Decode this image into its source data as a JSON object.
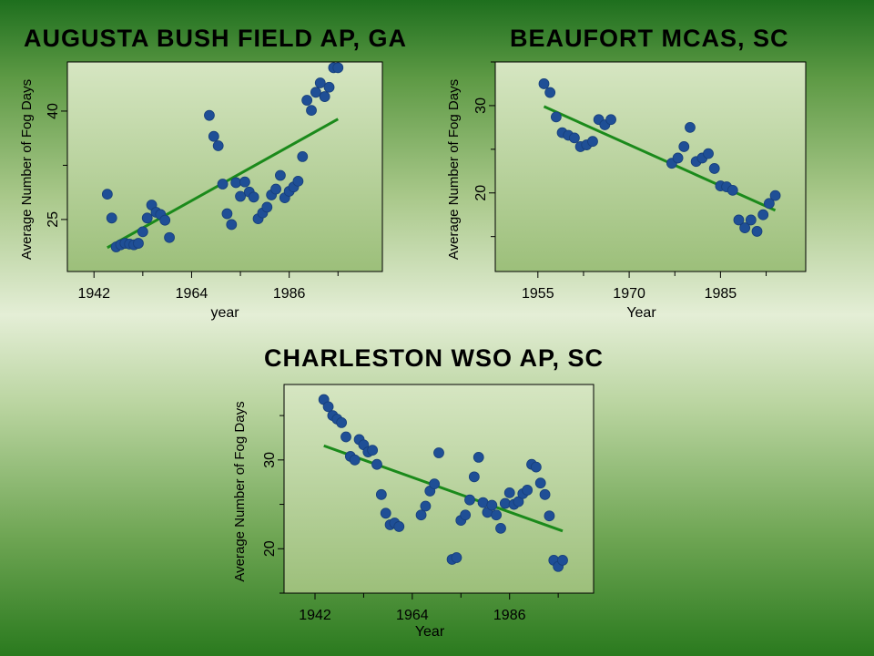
{
  "chart_data": [
    {
      "type": "scatter",
      "title": "AUGUSTA BUSH FIELD AP, GA",
      "xlabel": "year",
      "ylabel": "Average Number of Fog Days",
      "xlim": [
        1936,
        2007
      ],
      "ylim": [
        17.8,
        46.8
      ],
      "x_ticks": [
        1942,
        1964,
        1986
      ],
      "y_ticks": [
        25,
        40
      ],
      "plot_bg_top": "#d6e6c2",
      "plot_bg_bottom": "#9cbf7a",
      "point_color": "#1f4f96",
      "trend_color": "#1b8a1b",
      "points": [
        {
          "x": 1945,
          "y": 28.5
        },
        {
          "x": 1946,
          "y": 25.2
        },
        {
          "x": 1947,
          "y": 21.2
        },
        {
          "x": 1948,
          "y": 21.5
        },
        {
          "x": 1949,
          "y": 21.7
        },
        {
          "x": 1950,
          "y": 21.6
        },
        {
          "x": 1951,
          "y": 21.5
        },
        {
          "x": 1952,
          "y": 21.7
        },
        {
          "x": 1953,
          "y": 23.3
        },
        {
          "x": 1954,
          "y": 25.2
        },
        {
          "x": 1955,
          "y": 27.0
        },
        {
          "x": 1956,
          "y": 26.0
        },
        {
          "x": 1957,
          "y": 25.7
        },
        {
          "x": 1958,
          "y": 24.9
        },
        {
          "x": 1959,
          "y": 22.5
        },
        {
          "x": 1968,
          "y": 39.4
        },
        {
          "x": 1969,
          "y": 36.5
        },
        {
          "x": 1970,
          "y": 35.2
        },
        {
          "x": 1971,
          "y": 29.9
        },
        {
          "x": 1972,
          "y": 25.8
        },
        {
          "x": 1973,
          "y": 24.3
        },
        {
          "x": 1974,
          "y": 30.1
        },
        {
          "x": 1975,
          "y": 28.2
        },
        {
          "x": 1976,
          "y": 30.2
        },
        {
          "x": 1977,
          "y": 28.8
        },
        {
          "x": 1978,
          "y": 28.1
        },
        {
          "x": 1979,
          "y": 25.1
        },
        {
          "x": 1980,
          "y": 25.9
        },
        {
          "x": 1981,
          "y": 26.7
        },
        {
          "x": 1982,
          "y": 28.4
        },
        {
          "x": 1983,
          "y": 29.2
        },
        {
          "x": 1984,
          "y": 31.1
        },
        {
          "x": 1985,
          "y": 28.0
        },
        {
          "x": 1986,
          "y": 28.9
        },
        {
          "x": 1987,
          "y": 29.5
        },
        {
          "x": 1988,
          "y": 30.3
        },
        {
          "x": 1989,
          "y": 33.7
        },
        {
          "x": 1990,
          "y": 41.5
        },
        {
          "x": 1991,
          "y": 40.1
        },
        {
          "x": 1992,
          "y": 42.6
        },
        {
          "x": 1993,
          "y": 43.9
        },
        {
          "x": 1994,
          "y": 42.0
        },
        {
          "x": 1995,
          "y": 43.3
        },
        {
          "x": 1996,
          "y": 46.0
        },
        {
          "x": 1997,
          "y": 46.0
        }
      ],
      "trend": {
        "x": [
          1945,
          1997
        ],
        "y": [
          21.1,
          38.9
        ]
      }
    },
    {
      "type": "scatter",
      "title": "BEAUFORT MCAS, SC",
      "xlabel": "Year",
      "ylabel": "Average Number of Fog Days",
      "xlim": [
        1948,
        1999
      ],
      "ylim": [
        11,
        35
      ],
      "x_ticks": [
        1955,
        1970,
        1985
      ],
      "y_ticks": [
        20,
        30
      ],
      "plot_bg_top": "#d6e6c2",
      "plot_bg_bottom": "#9cbf7a",
      "point_color": "#1f4f96",
      "trend_color": "#1b8a1b",
      "points": [
        {
          "x": 1956,
          "y": 32.5
        },
        {
          "x": 1957,
          "y": 31.5
        },
        {
          "x": 1958,
          "y": 28.7
        },
        {
          "x": 1959,
          "y": 26.9
        },
        {
          "x": 1960,
          "y": 26.6
        },
        {
          "x": 1961,
          "y": 26.3
        },
        {
          "x": 1962,
          "y": 25.3
        },
        {
          "x": 1963,
          "y": 25.5
        },
        {
          "x": 1964,
          "y": 25.9
        },
        {
          "x": 1965,
          "y": 28.4
        },
        {
          "x": 1966,
          "y": 27.8
        },
        {
          "x": 1967,
          "y": 28.4
        },
        {
          "x": 1977,
          "y": 23.4
        },
        {
          "x": 1978,
          "y": 24.0
        },
        {
          "x": 1979,
          "y": 25.3
        },
        {
          "x": 1980,
          "y": 27.5
        },
        {
          "x": 1981,
          "y": 23.6
        },
        {
          "x": 1982,
          "y": 24.0
        },
        {
          "x": 1983,
          "y": 24.5
        },
        {
          "x": 1984,
          "y": 22.8
        },
        {
          "x": 1985,
          "y": 20.8
        },
        {
          "x": 1986,
          "y": 20.7
        },
        {
          "x": 1987,
          "y": 20.3
        },
        {
          "x": 1988,
          "y": 16.9
        },
        {
          "x": 1989,
          "y": 16.0
        },
        {
          "x": 1990,
          "y": 16.9
        },
        {
          "x": 1991,
          "y": 15.6
        },
        {
          "x": 1992,
          "y": 17.5
        },
        {
          "x": 1993,
          "y": 18.8
        },
        {
          "x": 1994,
          "y": 19.7
        }
      ],
      "trend": {
        "x": [
          1956,
          1994
        ],
        "y": [
          29.9,
          18.0
        ]
      }
    },
    {
      "type": "scatter",
      "title": "CHARLESTON WSO AP, SC",
      "xlabel": "Year",
      "ylabel": "Average Number of Fog Days",
      "xlim": [
        1935,
        2005
      ],
      "ylim": [
        15,
        38.5
      ],
      "x_ticks": [
        1942,
        1964,
        1986
      ],
      "y_ticks": [
        20,
        30
      ],
      "plot_bg_top": "#d6e6c2",
      "plot_bg_bottom": "#9cbf7a",
      "point_color": "#1f4f96",
      "trend_color": "#1b8a1b",
      "points": [
        {
          "x": 1944,
          "y": 36.8
        },
        {
          "x": 1945,
          "y": 36.0
        },
        {
          "x": 1946,
          "y": 35.0
        },
        {
          "x": 1947,
          "y": 34.6
        },
        {
          "x": 1948,
          "y": 34.2
        },
        {
          "x": 1949,
          "y": 32.6
        },
        {
          "x": 1950,
          "y": 30.4
        },
        {
          "x": 1951,
          "y": 30.0
        },
        {
          "x": 1952,
          "y": 32.3
        },
        {
          "x": 1953,
          "y": 31.7
        },
        {
          "x": 1954,
          "y": 30.9
        },
        {
          "x": 1955,
          "y": 31.1
        },
        {
          "x": 1956,
          "y": 29.5
        },
        {
          "x": 1957,
          "y": 26.1
        },
        {
          "x": 1958,
          "y": 24.0
        },
        {
          "x": 1959,
          "y": 22.7
        },
        {
          "x": 1960,
          "y": 22.9
        },
        {
          "x": 1961,
          "y": 22.5
        },
        {
          "x": 1966,
          "y": 23.8
        },
        {
          "x": 1967,
          "y": 24.8
        },
        {
          "x": 1968,
          "y": 26.5
        },
        {
          "x": 1969,
          "y": 27.3
        },
        {
          "x": 1970,
          "y": 30.8
        },
        {
          "x": 1973,
          "y": 18.8
        },
        {
          "x": 1974,
          "y": 19.0
        },
        {
          "x": 1975,
          "y": 23.2
        },
        {
          "x": 1976,
          "y": 23.8
        },
        {
          "x": 1977,
          "y": 25.5
        },
        {
          "x": 1978,
          "y": 28.1
        },
        {
          "x": 1979,
          "y": 30.3
        },
        {
          "x": 1980,
          "y": 25.2
        },
        {
          "x": 1981,
          "y": 24.1
        },
        {
          "x": 1982,
          "y": 24.9
        },
        {
          "x": 1983,
          "y": 23.8
        },
        {
          "x": 1984,
          "y": 22.3
        },
        {
          "x": 1985,
          "y": 25.1
        },
        {
          "x": 1986,
          "y": 26.3
        },
        {
          "x": 1987,
          "y": 25.0
        },
        {
          "x": 1988,
          "y": 25.3
        },
        {
          "x": 1989,
          "y": 26.2
        },
        {
          "x": 1990,
          "y": 26.6
        },
        {
          "x": 1991,
          "y": 29.5
        },
        {
          "x": 1992,
          "y": 29.2
        },
        {
          "x": 1993,
          "y": 27.4
        },
        {
          "x": 1994,
          "y": 26.1
        },
        {
          "x": 1995,
          "y": 23.7
        },
        {
          "x": 1996,
          "y": 18.7
        },
        {
          "x": 1997,
          "y": 18.0
        },
        {
          "x": 1998,
          "y": 18.7
        }
      ],
      "trend": {
        "x": [
          1944,
          1998
        ],
        "y": [
          31.6,
          22.0
        ]
      }
    }
  ]
}
